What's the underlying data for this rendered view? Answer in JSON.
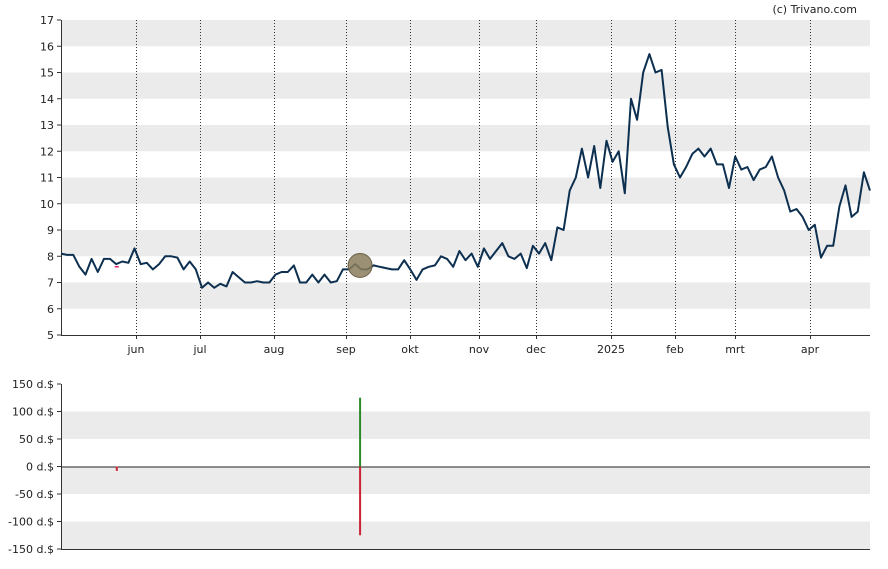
{
  "credit": "(c) Trivano.com",
  "colors": {
    "band": "#ebebeb",
    "price_line": "#0d3050",
    "marker_fill": "#8b7d5c",
    "bar_positive": "#2a8a2a",
    "bar_negative": "#cc2233",
    "small_marker": "#e0206a"
  },
  "chart_data": [
    {
      "type": "line",
      "x_tick_labels": [
        "jun",
        "jul",
        "aug",
        "sep",
        "okt",
        "nov",
        "dec",
        "2025",
        "feb",
        "mrt",
        "apr"
      ],
      "y_ticks": [
        5,
        6,
        7,
        8,
        9,
        10,
        11,
        12,
        13,
        14,
        15,
        16,
        17
      ],
      "ylim": [
        5,
        17
      ],
      "grid": "dotted vertical at month ticks, alternating horizontal bands",
      "series": [
        {
          "values": [
            8.1,
            8.05,
            8.05,
            7.6,
            7.3,
            7.9,
            7.4,
            7.9,
            7.9,
            7.7,
            7.8,
            7.75,
            8.3,
            7.7,
            7.75,
            7.5,
            7.7,
            8.0,
            8.0,
            7.95,
            7.5,
            7.8,
            7.5,
            6.8,
            7.0,
            6.8,
            6.95,
            6.85,
            7.4,
            7.2,
            7.0,
            7.0,
            7.05,
            7.0,
            7.0,
            7.3,
            7.4,
            7.4,
            7.65,
            7.0,
            7.0,
            7.3,
            7.0,
            7.3,
            7.0,
            7.05,
            7.5,
            7.5,
            7.7,
            7.5,
            7.5,
            7.65,
            7.6,
            7.55,
            7.5,
            7.5,
            7.85,
            7.5,
            7.1,
            7.5,
            7.6,
            7.65,
            8.0,
            7.9,
            7.6,
            8.2,
            7.85,
            8.1,
            7.6,
            8.3,
            7.9,
            8.2,
            8.5,
            8.0,
            7.9,
            8.1,
            7.55,
            8.4,
            8.1,
            8.5,
            7.85,
            9.1,
            9.0,
            10.5,
            11.0,
            12.1,
            11.0,
            12.2,
            10.6,
            12.4,
            11.6,
            12.0,
            10.4,
            14.0,
            13.2,
            15.0,
            15.7,
            15.0,
            15.1,
            12.9,
            11.5,
            11.0,
            11.4,
            11.9,
            12.1,
            11.8,
            12.1,
            11.5,
            11.5,
            10.6,
            11.8,
            11.3,
            11.4,
            10.9,
            11.3,
            11.4,
            11.8,
            11.0,
            10.5,
            9.7,
            9.8,
            9.5,
            9.0,
            9.2,
            7.95,
            8.4,
            8.4,
            9.9,
            10.7,
            9.5,
            9.7,
            11.2,
            10.5
          ]
        }
      ],
      "events": [
        {
          "month_index": 3.22,
          "value": 7.65,
          "type": "large-marker"
        },
        {
          "month_index": -0.3,
          "value": 7.6,
          "type": "small-marker"
        }
      ]
    },
    {
      "type": "bar",
      "y_tick_labels": [
        "150 d.$",
        "100 d.$",
        "50 d.$",
        "0 d.$",
        "-50 d.$",
        "-100 d.$",
        "-150 d.$"
      ],
      "y_ticks": [
        150,
        100,
        50,
        0,
        -50,
        -100,
        -150
      ],
      "ylim": [
        -150,
        150
      ],
      "bars": [
        {
          "month_index": -0.3,
          "value": -8,
          "sign": "negative"
        },
        {
          "month_index": 3.22,
          "value": 125,
          "sign": "positive"
        },
        {
          "month_index": 3.22,
          "value": -125,
          "sign": "negative"
        }
      ]
    }
  ]
}
